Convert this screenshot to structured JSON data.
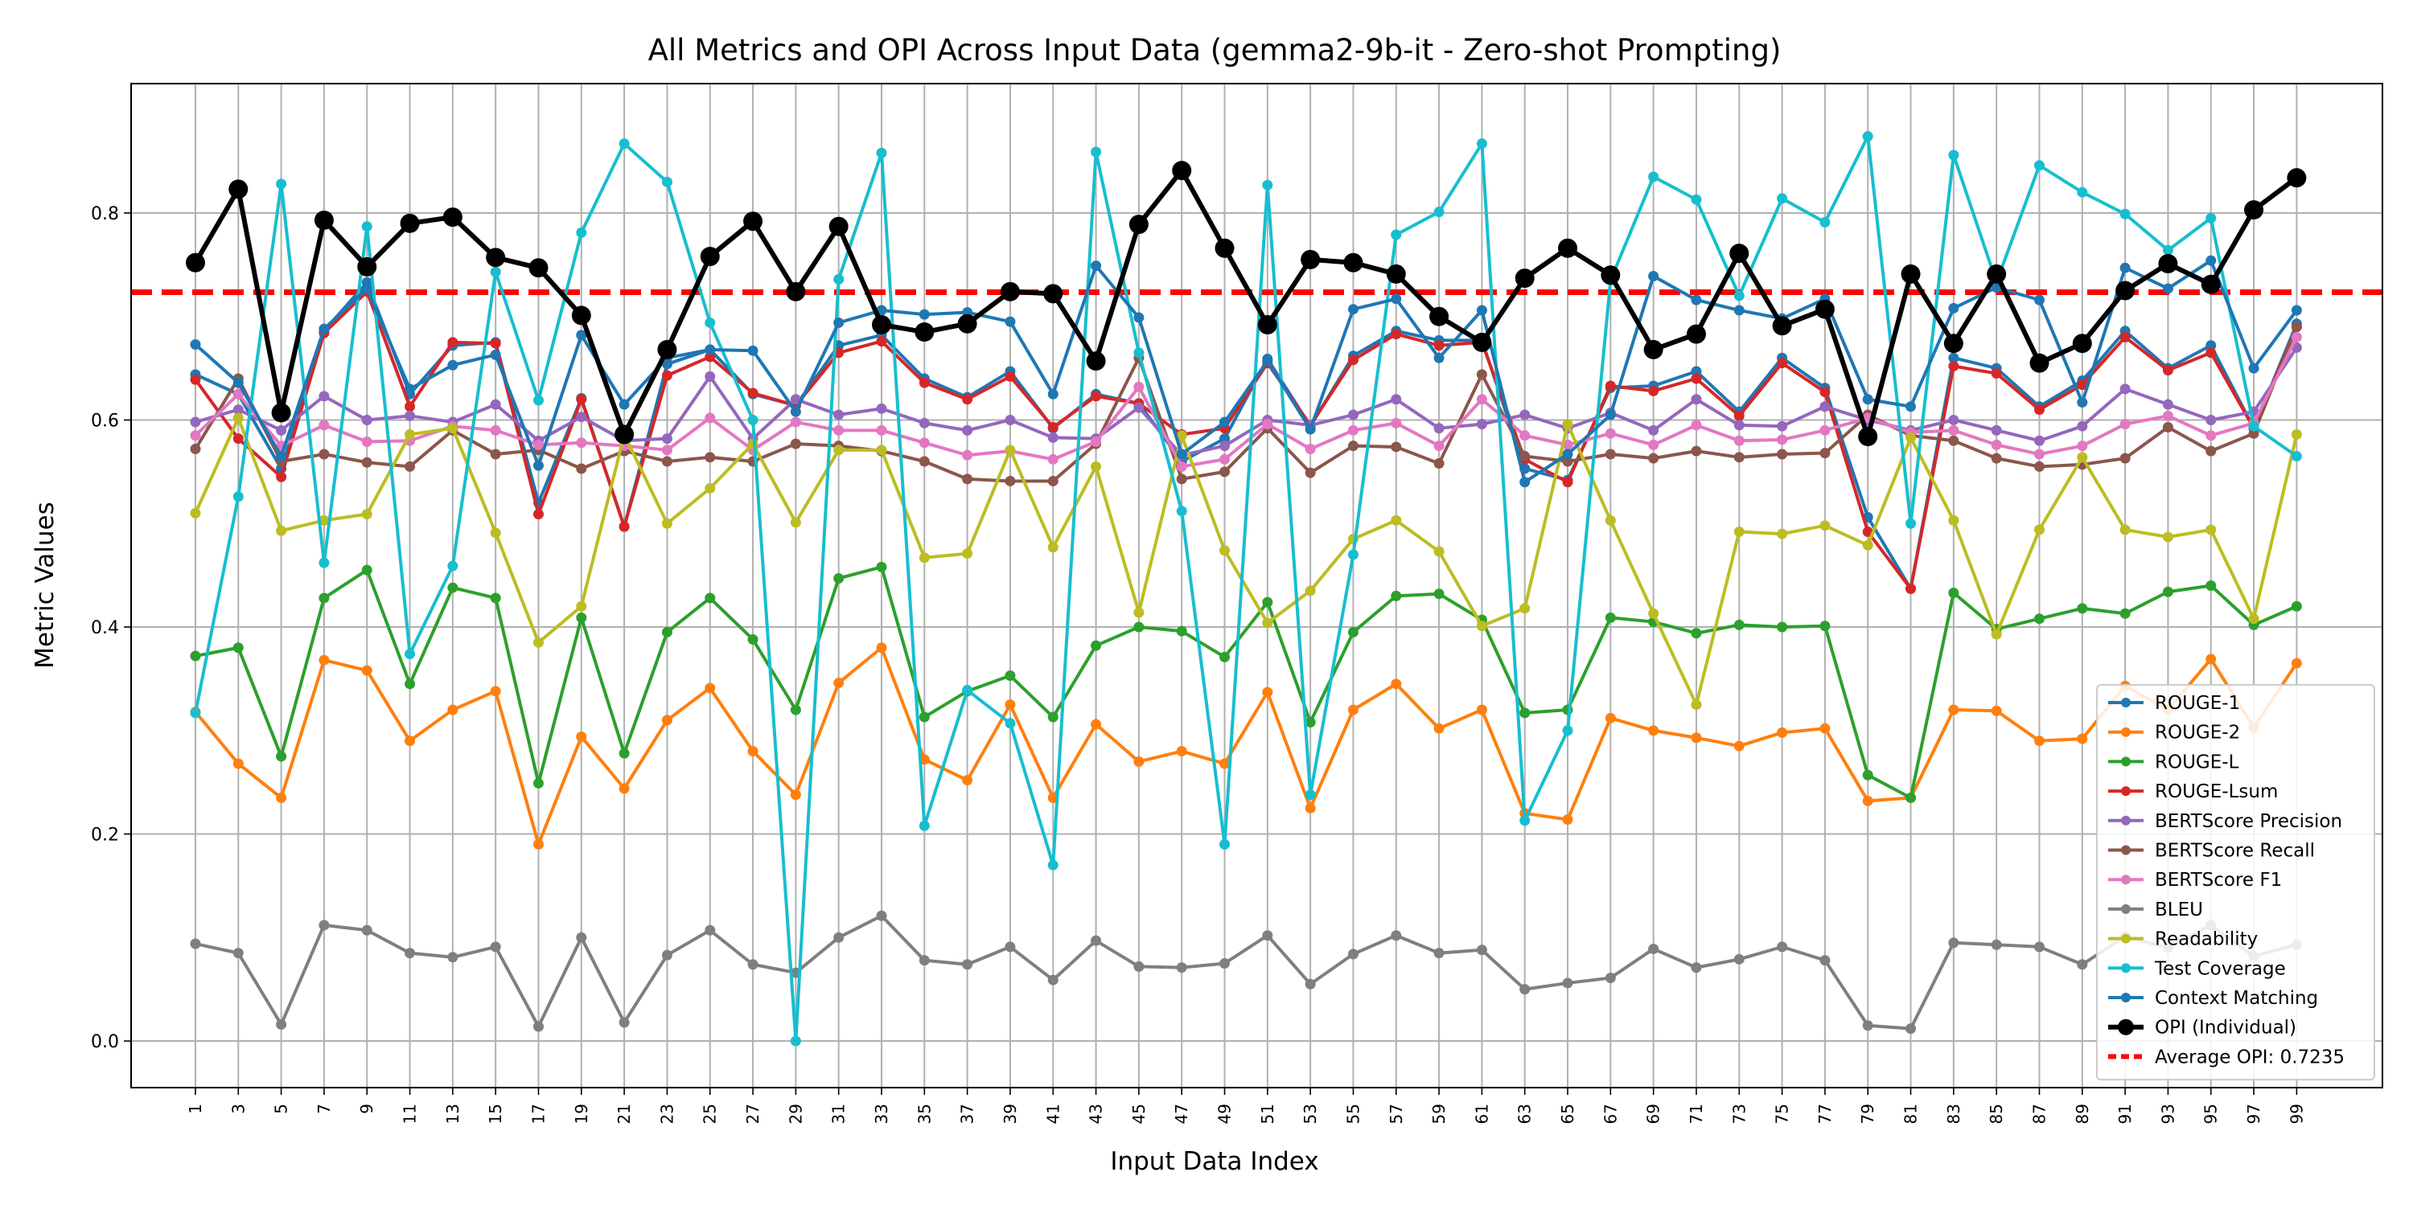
{
  "chart_data": {
    "type": "line",
    "title": "All Metrics and OPI Across Input Data (gemma2-9b-it - Zero-shot Prompting)",
    "xlabel": "Input Data Index",
    "ylabel": "Metric Values",
    "x": [
      1,
      3,
      5,
      7,
      9,
      11,
      13,
      15,
      17,
      19,
      21,
      23,
      25,
      27,
      29,
      31,
      33,
      35,
      37,
      39,
      41,
      43,
      45,
      47,
      49,
      51,
      53,
      55,
      57,
      59,
      61,
      63,
      65,
      67,
      69,
      71,
      73,
      75,
      77,
      79,
      81,
      83,
      85,
      87,
      89,
      91,
      93,
      95,
      97,
      99
    ],
    "xlim": [
      -2,
      103
    ],
    "ylim": [
      -0.045,
      0.925
    ],
    "yticks": [
      0.0,
      0.2,
      0.4,
      0.6,
      0.8
    ],
    "ytick_labels": [
      "0.0",
      "0.2",
      "0.4",
      "0.6",
      "0.8"
    ],
    "grid": true,
    "legend_position": "lower-right",
    "average_line": {
      "label": "Average OPI: 0.7235",
      "value": 0.7235,
      "color": "#ff0000",
      "style": "dashed"
    },
    "series": [
      {
        "name": "ROUGE-1",
        "color": "#1f77b4",
        "values": [
          0.644,
          0.625,
          0.553,
          0.686,
          0.733,
          0.625,
          0.672,
          0.675,
          0.52,
          0.621,
          0.497,
          0.654,
          0.668,
          0.625,
          0.614,
          0.672,
          0.682,
          0.64,
          0.622,
          0.647,
          0.592,
          0.625,
          0.616,
          0.56,
          0.582,
          0.659,
          0.594,
          0.662,
          0.686,
          0.677,
          0.677,
          0.553,
          0.542,
          0.631,
          0.633,
          0.647,
          0.608,
          0.66,
          0.631,
          0.506,
          0.437,
          0.66,
          0.65,
          0.613,
          0.638,
          0.686,
          0.65,
          0.672,
          0.592,
          0.693
        ]
      },
      {
        "name": "ROUGE-2",
        "color": "#ff7f0e",
        "values": [
          0.318,
          0.268,
          0.235,
          0.368,
          0.358,
          0.29,
          0.32,
          0.338,
          0.19,
          0.294,
          0.244,
          0.31,
          0.341,
          0.28,
          0.238,
          0.346,
          0.38,
          0.272,
          0.252,
          0.325,
          0.235,
          0.306,
          0.27,
          0.28,
          0.268,
          0.337,
          0.225,
          0.32,
          0.345,
          0.302,
          0.32,
          0.22,
          0.214,
          0.312,
          0.3,
          0.293,
          0.285,
          0.298,
          0.302,
          0.232,
          0.235,
          0.32,
          0.319,
          0.29,
          0.292,
          0.343,
          0.32,
          0.369,
          0.303,
          0.365
        ]
      },
      {
        "name": "ROUGE-L",
        "color": "#2ca02c",
        "values": [
          0.372,
          0.38,
          0.275,
          0.428,
          0.455,
          0.345,
          0.438,
          0.428,
          0.249,
          0.409,
          0.278,
          0.395,
          0.428,
          0.388,
          0.32,
          0.447,
          0.458,
          0.313,
          0.338,
          0.353,
          0.313,
          0.382,
          0.4,
          0.396,
          0.371,
          0.424,
          0.308,
          0.395,
          0.43,
          0.432,
          0.407,
          0.317,
          0.32,
          0.409,
          0.405,
          0.394,
          0.402,
          0.4,
          0.401,
          0.257,
          0.235,
          0.433,
          0.398,
          0.408,
          0.418,
          0.413,
          0.434,
          0.44,
          0.402,
          0.42
        ]
      },
      {
        "name": "ROUGE-Lsum",
        "color": "#d62728",
        "values": [
          0.639,
          0.582,
          0.545,
          0.684,
          0.724,
          0.613,
          0.675,
          0.674,
          0.509,
          0.62,
          0.497,
          0.643,
          0.661,
          0.626,
          0.614,
          0.665,
          0.676,
          0.636,
          0.62,
          0.642,
          0.593,
          0.623,
          0.616,
          0.586,
          0.592,
          0.655,
          0.595,
          0.658,
          0.683,
          0.672,
          0.675,
          0.562,
          0.54,
          0.633,
          0.628,
          0.64,
          0.604,
          0.655,
          0.627,
          0.492,
          0.437,
          0.652,
          0.645,
          0.61,
          0.634,
          0.68,
          0.648,
          0.665,
          0.592,
          0.69
        ]
      },
      {
        "name": "BERTScore Precision",
        "color": "#9467bd",
        "values": [
          0.598,
          0.61,
          0.59,
          0.623,
          0.6,
          0.604,
          0.598,
          0.615,
          0.58,
          0.603,
          0.58,
          0.582,
          0.642,
          0.582,
          0.62,
          0.605,
          0.611,
          0.597,
          0.59,
          0.6,
          0.583,
          0.582,
          0.612,
          0.566,
          0.575,
          0.6,
          0.595,
          0.605,
          0.62,
          0.592,
          0.596,
          0.605,
          0.592,
          0.607,
          0.59,
          0.62,
          0.595,
          0.594,
          0.613,
          0.6,
          0.59,
          0.6,
          0.59,
          0.58,
          0.594,
          0.63,
          0.615,
          0.6,
          0.608,
          0.67
        ]
      },
      {
        "name": "BERTScore Recall",
        "color": "#8c564b",
        "values": [
          0.572,
          0.64,
          0.56,
          0.567,
          0.559,
          0.555,
          0.59,
          0.567,
          0.571,
          0.553,
          0.57,
          0.56,
          0.564,
          0.56,
          0.577,
          0.575,
          0.57,
          0.56,
          0.543,
          0.541,
          0.541,
          0.577,
          0.66,
          0.543,
          0.55,
          0.592,
          0.549,
          0.575,
          0.574,
          0.558,
          0.644,
          0.565,
          0.56,
          0.567,
          0.563,
          0.57,
          0.564,
          0.567,
          0.568,
          0.605,
          0.585,
          0.58,
          0.563,
          0.555,
          0.557,
          0.563,
          0.593,
          0.57,
          0.587,
          0.69
        ]
      },
      {
        "name": "BERTScore F1",
        "color": "#e377c2",
        "values": [
          0.585,
          0.625,
          0.575,
          0.595,
          0.579,
          0.58,
          0.594,
          0.59,
          0.576,
          0.578,
          0.575,
          0.571,
          0.602,
          0.571,
          0.598,
          0.59,
          0.59,
          0.578,
          0.566,
          0.57,
          0.562,
          0.579,
          0.632,
          0.555,
          0.562,
          0.596,
          0.572,
          0.59,
          0.597,
          0.575,
          0.62,
          0.585,
          0.576,
          0.587,
          0.576,
          0.595,
          0.58,
          0.581,
          0.59,
          0.602,
          0.588,
          0.59,
          0.576,
          0.567,
          0.575,
          0.596,
          0.604,
          0.585,
          0.597,
          0.68
        ]
      },
      {
        "name": "BLEU",
        "color": "#7f7f7f",
        "values": [
          0.094,
          0.085,
          0.016,
          0.112,
          0.107,
          0.085,
          0.081,
          0.091,
          0.014,
          0.1,
          0.018,
          0.083,
          0.107,
          0.074,
          0.066,
          0.1,
          0.121,
          0.078,
          0.074,
          0.091,
          0.059,
          0.097,
          0.072,
          0.071,
          0.075,
          0.102,
          0.055,
          0.084,
          0.102,
          0.085,
          0.088,
          0.05,
          0.056,
          0.061,
          0.089,
          0.071,
          0.079,
          0.091,
          0.078,
          0.015,
          0.012,
          0.095,
          0.093,
          0.091,
          0.074,
          0.101,
          0.09,
          0.112,
          0.082,
          0.093
        ]
      },
      {
        "name": "Readability",
        "color": "#bcbd22",
        "values": [
          0.51,
          0.602,
          0.493,
          0.503,
          0.509,
          0.586,
          0.592,
          0.491,
          0.385,
          0.42,
          0.586,
          0.5,
          0.534,
          0.577,
          0.501,
          0.571,
          0.571,
          0.467,
          0.471,
          0.571,
          0.477,
          0.555,
          0.414,
          0.585,
          0.474,
          0.404,
          0.435,
          0.485,
          0.503,
          0.473,
          0.401,
          0.418,
          0.596,
          0.503,
          0.413,
          0.325,
          0.492,
          0.49,
          0.498,
          0.479,
          0.583,
          0.503,
          0.393,
          0.494,
          0.564,
          0.494,
          0.487,
          0.494,
          0.408,
          0.586
        ]
      },
      {
        "name": "Test Coverage",
        "color": "#17becf",
        "values": [
          0.317,
          0.526,
          0.828,
          0.462,
          0.787,
          0.374,
          0.459,
          0.743,
          0.619,
          0.781,
          0.867,
          0.83,
          0.694,
          0.6,
          0.0,
          0.736,
          0.858,
          0.208,
          0.339,
          0.307,
          0.17,
          0.859,
          0.665,
          0.512,
          0.19,
          0.827,
          0.238,
          0.47,
          0.779,
          0.801,
          0.867,
          0.213,
          0.3,
          0.735,
          0.835,
          0.813,
          0.72,
          0.814,
          0.791,
          0.874,
          0.5,
          0.856,
          0.733,
          0.846,
          0.82,
          0.799,
          0.764,
          0.795,
          0.594,
          0.565
        ]
      },
      {
        "name": "Context Matching",
        "color": "#1f77b4",
        "values": [
          0.673,
          0.636,
          0.565,
          0.688,
          0.727,
          0.63,
          0.653,
          0.663,
          0.556,
          0.682,
          0.615,
          0.66,
          0.668,
          0.667,
          0.608,
          0.694,
          0.706,
          0.702,
          0.704,
          0.695,
          0.625,
          0.749,
          0.699,
          0.567,
          0.598,
          0.657,
          0.591,
          0.707,
          0.717,
          0.66,
          0.706,
          0.54,
          0.567,
          0.605,
          0.739,
          0.716,
          0.706,
          0.698,
          0.717,
          0.62,
          0.613,
          0.708,
          0.728,
          0.716,
          0.617,
          0.747,
          0.727,
          0.754,
          0.65,
          0.706
        ]
      },
      {
        "name": "OPI (Individual)",
        "color": "#000000",
        "values": [
          0.752,
          0.823,
          0.607,
          0.793,
          0.748,
          0.79,
          0.796,
          0.757,
          0.747,
          0.701,
          0.586,
          0.668,
          0.758,
          0.792,
          0.724,
          0.787,
          0.692,
          0.685,
          0.693,
          0.724,
          0.722,
          0.657,
          0.789,
          0.841,
          0.766,
          0.692,
          0.755,
          0.752,
          0.741,
          0.7,
          0.675,
          0.737,
          0.766,
          0.74,
          0.668,
          0.683,
          0.761,
          0.691,
          0.707,
          0.584,
          0.741,
          0.674,
          0.741,
          0.655,
          0.674,
          0.725,
          0.751,
          0.731,
          0.803,
          0.834
        ]
      }
    ]
  }
}
